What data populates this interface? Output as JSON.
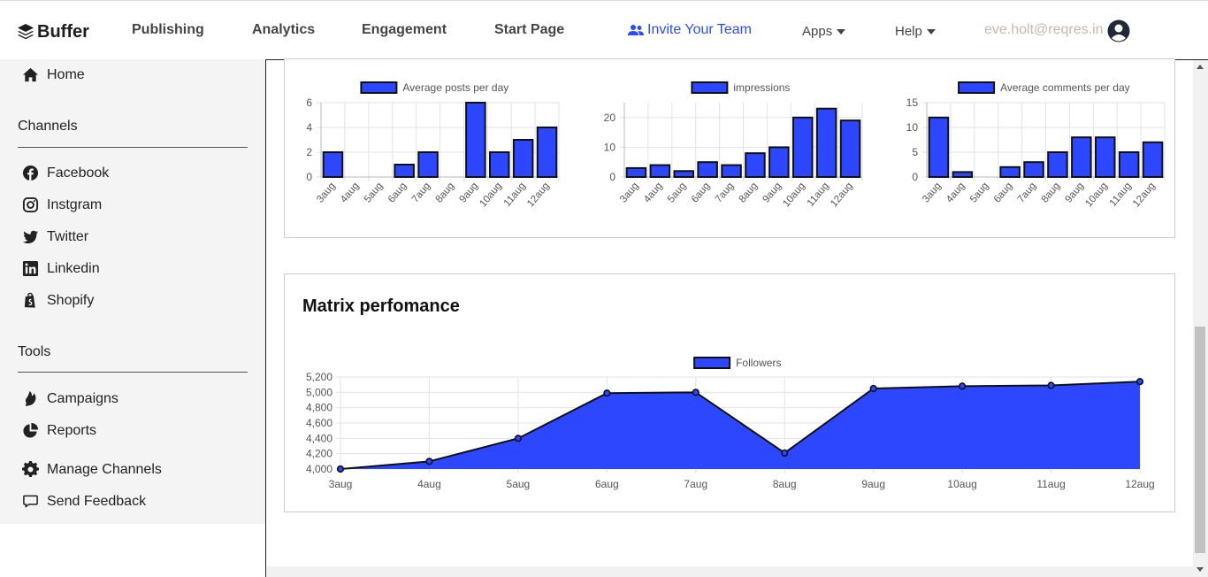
{
  "header": {
    "brand": "Buffer",
    "nav": [
      "Publishing",
      "Analytics",
      "Engagement",
      "Start Page"
    ],
    "invite": "Invite Your Team",
    "apps": "Apps",
    "help": "Help",
    "email": "eve.holt@reqres.in"
  },
  "sidebar": {
    "home": "Home",
    "channels_heading": "Channels",
    "channels": [
      "Facebook",
      "Instgram",
      "Twitter",
      "Linkedin",
      "Shopify"
    ],
    "tools_heading": "Tools",
    "tools": [
      "Campaigns",
      "Reports"
    ],
    "manage": "Manage Channels",
    "feedback": "Send Feedback"
  },
  "matrix_title": "Matrix perfomance",
  "colors": {
    "bar": "#2c47ff",
    "accent": "#2c4bff"
  },
  "chart_data": [
    {
      "type": "bar",
      "categories": [
        "3aug",
        "4aug",
        "5aug",
        "6aug",
        "7aug",
        "8aug",
        "9aug",
        "10aug",
        "11aug",
        "12aug"
      ],
      "series": [
        {
          "name": "Average posts per day",
          "values": [
            2,
            0,
            0,
            1,
            2,
            0,
            6,
            2,
            3,
            4
          ]
        }
      ],
      "ylim": [
        0,
        6
      ],
      "yticks": [
        0,
        2,
        4,
        6
      ],
      "grid": true,
      "legend": "top"
    },
    {
      "type": "bar",
      "categories": [
        "3aug",
        "4aug",
        "5aug",
        "6aug",
        "7aug",
        "8aug",
        "9aug",
        "10aug",
        "11aug",
        "12aug"
      ],
      "series": [
        {
          "name": "impressions",
          "values": [
            3,
            4,
            2,
            5,
            4,
            8,
            10,
            20,
            23,
            19
          ]
        }
      ],
      "ylim": [
        0,
        25
      ],
      "yticks": [
        0,
        10,
        20
      ],
      "grid": true,
      "legend": "top"
    },
    {
      "type": "bar",
      "categories": [
        "3aug",
        "4aug",
        "5aug",
        "6aug",
        "7aug",
        "8aug",
        "9aug",
        "10aug",
        "11aug",
        "12aug"
      ],
      "series": [
        {
          "name": "Average comments per day",
          "values": [
            12,
            1,
            0,
            2,
            3,
            5,
            8,
            8,
            5,
            7
          ]
        }
      ],
      "ylim": [
        0,
        15
      ],
      "yticks": [
        0,
        5,
        10,
        15
      ],
      "grid": true,
      "legend": "top"
    },
    {
      "type": "area",
      "categories": [
        "3aug",
        "4aug",
        "5aug",
        "6aug",
        "7aug",
        "8aug",
        "9aug",
        "10aug",
        "11aug",
        "12aug"
      ],
      "series": [
        {
          "name": "Followers",
          "values": [
            4000,
            4100,
            4400,
            4990,
            5000,
            4210,
            5050,
            5080,
            5090,
            5140
          ]
        }
      ],
      "ylim": [
        4000,
        5200
      ],
      "yticks": [
        "4,000",
        "4,200",
        "4,400",
        "4,600",
        "4,800",
        "5,000",
        "5,200"
      ],
      "grid": true,
      "legend": "top"
    }
  ]
}
